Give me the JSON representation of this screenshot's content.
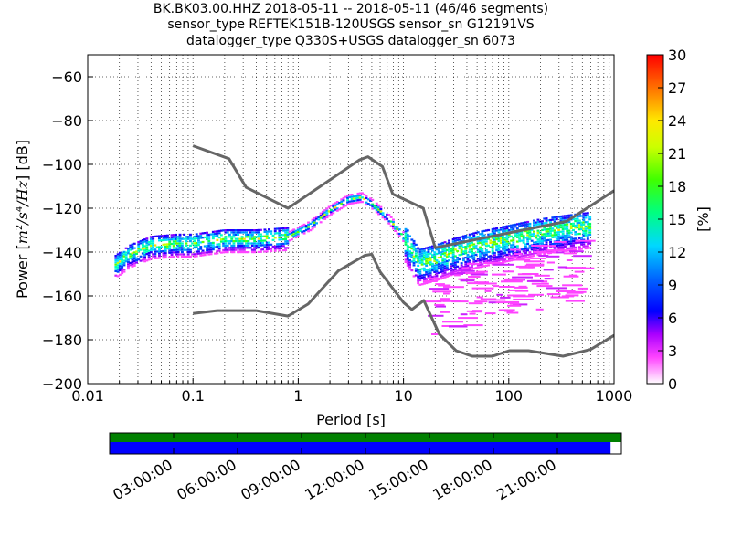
{
  "header": {
    "line1": "BK.BK03.00.HHZ   2018-05-11 -- 2018-05-11  (46/46 segments)",
    "line2": "sensor_type REFTEK151B-120USGS sensor_sn G12191VS",
    "line3": "datalogger_type Q330S+USGS datalogger_sn 6073"
  },
  "chart_data": {
    "type": "heatmap",
    "xlabel": "Period [s]",
    "ylabel": "Power [m²/s⁴/Hz] [dB]",
    "xscale": "log",
    "xlim": [
      0.01,
      1000
    ],
    "ylim": [
      -200,
      -50
    ],
    "xticks": [
      0.01,
      0.1,
      1,
      10,
      100,
      1000
    ],
    "xtick_labels": [
      "0.01",
      "0.1",
      "1",
      "10",
      "100",
      "1000"
    ],
    "yticks": [
      -200,
      -180,
      -160,
      -140,
      -120,
      -100,
      -80,
      -60
    ],
    "ytick_labels": [
      "−200",
      "−180",
      "−160",
      "−140",
      "−120",
      "−100",
      "−80",
      "−60"
    ],
    "grid": true,
    "colorbar": {
      "label": "[%]",
      "range": [
        0,
        30
      ],
      "ticks": [
        0,
        3,
        6,
        9,
        12,
        15,
        18,
        21,
        24,
        27,
        30
      ],
      "tick_labels": [
        "0",
        "3",
        "6",
        "9",
        "12",
        "15",
        "18",
        "21",
        "24",
        "27",
        "30"
      ]
    },
    "noise_models": [
      {
        "points": [
          [
            0.1,
            -91.5
          ],
          [
            0.22,
            -97.4
          ],
          [
            0.32,
            -110.5
          ],
          [
            0.8,
            -120
          ],
          [
            3.8,
            -98
          ],
          [
            4.6,
            -96.5
          ],
          [
            6.3,
            -101
          ],
          [
            7.9,
            -113.5
          ],
          [
            15.4,
            -120
          ],
          [
            20,
            -138
          ],
          [
            354,
            -126
          ],
          [
            1000,
            -112
          ]
        ]
      },
      {
        "points": [
          [
            0.1,
            -168
          ],
          [
            0.17,
            -166.7
          ],
          [
            0.4,
            -166.7
          ],
          [
            0.8,
            -169.2
          ],
          [
            1.24,
            -163.7
          ],
          [
            2.4,
            -148.6
          ],
          [
            4.3,
            -141.5
          ],
          [
            5,
            -141
          ],
          [
            6,
            -149
          ],
          [
            10,
            -163
          ],
          [
            12,
            -166.2
          ],
          [
            15.6,
            -162.1
          ],
          [
            21.9,
            -177.5
          ],
          [
            31.6,
            -185
          ],
          [
            45,
            -187.5
          ],
          [
            70,
            -187.5
          ],
          [
            101,
            -185
          ],
          [
            154,
            -185
          ],
          [
            328,
            -187.5
          ],
          [
            600,
            -184.4
          ],
          [
            1000,
            -178
          ]
        ]
      }
    ],
    "ppsd_ridge": [
      [
        0.018,
        -146
      ],
      [
        0.025,
        -141
      ],
      [
        0.04,
        -137
      ],
      [
        0.07,
        -136
      ],
      [
        0.1,
        -136
      ],
      [
        0.2,
        -134
      ],
      [
        0.4,
        -134
      ],
      [
        0.8,
        -133
      ],
      [
        1.3,
        -128
      ],
      [
        2,
        -121
      ],
      [
        3,
        -116
      ],
      [
        4,
        -115
      ],
      [
        5,
        -118
      ],
      [
        7,
        -124
      ],
      [
        10,
        -133
      ],
      [
        14,
        -145
      ],
      [
        20,
        -143
      ],
      [
        30,
        -140
      ],
      [
        50,
        -137
      ],
      [
        100,
        -134
      ],
      [
        200,
        -131
      ],
      [
        400,
        -129
      ],
      [
        600,
        -128
      ]
    ]
  },
  "timeline": {
    "tick_labels": [
      "03:00:00",
      "06:00:00",
      "09:00:00",
      "12:00:00",
      "15:00:00",
      "18:00:00",
      "21:00:00"
    ],
    "coverage_fraction": 0.979
  },
  "colors": {
    "noise_model": "#666666",
    "timeline_data": "#008000",
    "timeline_gaps": "#0000ff"
  }
}
